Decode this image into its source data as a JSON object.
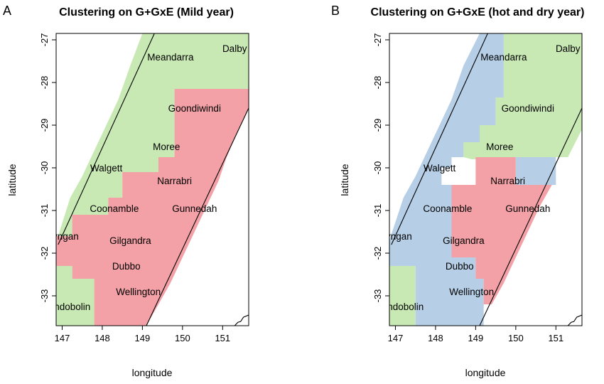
{
  "figure": {
    "panels": [
      {
        "letter": "A",
        "title": "Clustering on G+GxE (Mild year)",
        "xlabel": "longitude",
        "ylabel": "latitude"
      },
      {
        "letter": "B",
        "title": "Clustering on G+GxE (hot and dry year)",
        "xlabel": "longitude",
        "ylabel": "latitude"
      }
    ]
  },
  "chart_data": [
    {
      "type": "heatmap",
      "title": "Clustering on G+GxE (Mild year)",
      "xlabel": "longitude",
      "ylabel": "latitude",
      "xlim": [
        146.85,
        151.65
      ],
      "ylim": [
        -33.7,
        -26.85
      ],
      "xticks": [
        "147",
        "148",
        "149",
        "150",
        "151"
      ],
      "yticks": [
        "-27",
        "-28",
        "-29",
        "-30",
        "-31",
        "-32",
        "-33"
      ],
      "colors": {
        "green": "#c9e9b4",
        "red": "#f3a1a7",
        "blue": "#b6cfe7"
      },
      "region_lines": [
        [
          [
            146.9,
            -31.8
          ],
          [
            149.3,
            -26.85
          ]
        ],
        [
          [
            149.1,
            -33.7
          ],
          [
            151.65,
            -28.6
          ]
        ]
      ],
      "regions": [
        {
          "color": "green",
          "polygon": [
            [
              149.0,
              -26.85
            ],
            [
              151.65,
              -26.85
            ],
            [
              151.65,
              -28.15
            ],
            [
              149.8,
              -28.15
            ],
            [
              149.8,
              -29.75
            ],
            [
              149.4,
              -29.75
            ],
            [
              149.4,
              -30.1
            ],
            [
              148.5,
              -30.1
            ],
            [
              148.5,
              -30.7
            ],
            [
              148.15,
              -30.7
            ],
            [
              148.15,
              -31.1
            ],
            [
              147.25,
              -31.1
            ],
            [
              147.25,
              -31.6
            ],
            [
              146.9,
              -31.6
            ],
            [
              147.2,
              -30.7
            ],
            [
              147.5,
              -30.2
            ],
            [
              147.8,
              -29.6
            ],
            [
              148.1,
              -29.0
            ],
            [
              148.4,
              -28.4
            ],
            [
              148.7,
              -27.6
            ]
          ]
        },
        {
          "color": "red",
          "polygon": [
            [
              149.8,
              -28.15
            ],
            [
              151.65,
              -28.15
            ],
            [
              151.65,
              -28.6
            ],
            [
              151.35,
              -29.2
            ],
            [
              151.1,
              -29.75
            ],
            [
              150.9,
              -30.3
            ],
            [
              150.6,
              -30.9
            ],
            [
              150.3,
              -31.5
            ],
            [
              150.0,
              -32.1
            ],
            [
              149.7,
              -32.7
            ],
            [
              149.4,
              -33.2
            ],
            [
              149.1,
              -33.7
            ],
            [
              147.8,
              -33.7
            ],
            [
              147.8,
              -32.6
            ],
            [
              147.25,
              -32.6
            ],
            [
              147.25,
              -32.3
            ],
            [
              146.85,
              -32.3
            ],
            [
              146.85,
              -31.6
            ],
            [
              147.25,
              -31.6
            ],
            [
              147.25,
              -31.1
            ],
            [
              148.15,
              -31.1
            ],
            [
              148.15,
              -30.7
            ],
            [
              148.5,
              -30.7
            ],
            [
              148.5,
              -30.1
            ],
            [
              149.4,
              -30.1
            ],
            [
              149.4,
              -29.75
            ],
            [
              149.8,
              -29.75
            ]
          ]
        },
        {
          "color": "green",
          "polygon": [
            [
              146.85,
              -32.3
            ],
            [
              147.25,
              -32.3
            ],
            [
              147.25,
              -32.6
            ],
            [
              147.8,
              -32.6
            ],
            [
              147.8,
              -33.7
            ],
            [
              146.85,
              -33.7
            ]
          ]
        }
      ],
      "towns": [
        {
          "name": "Dalby",
          "lon": 151.3,
          "lat": -27.2
        },
        {
          "name": "Meandarra",
          "lon": 149.7,
          "lat": -27.4
        },
        {
          "name": "Goondiwindi",
          "lon": 150.3,
          "lat": -28.6
        },
        {
          "name": "Moree",
          "lon": 149.6,
          "lat": -29.5
        },
        {
          "name": "Walgett",
          "lon": 148.1,
          "lat": -30.0
        },
        {
          "name": "Narrabri",
          "lon": 149.8,
          "lat": -30.3
        },
        {
          "name": "Coonamble",
          "lon": 148.3,
          "lat": -30.95
        },
        {
          "name": "Gunnedah",
          "lon": 150.3,
          "lat": -30.95
        },
        {
          "name": "Nyngan",
          "lon": 147.0,
          "lat": -31.6
        },
        {
          "name": "Gilgandra",
          "lon": 148.7,
          "lat": -31.7
        },
        {
          "name": "Dubbo",
          "lon": 148.6,
          "lat": -32.3
        },
        {
          "name": "Wellington",
          "lon": 148.9,
          "lat": -32.9
        },
        {
          "name": "Condobolin",
          "lon": 147.1,
          "lat": -33.25
        }
      ]
    },
    {
      "type": "heatmap",
      "title": "Clustering on G+GxE (hot and dry year)",
      "xlabel": "longitude",
      "ylabel": "latitude",
      "xlim": [
        146.85,
        151.65
      ],
      "ylim": [
        -33.7,
        -26.85
      ],
      "xticks": [
        "147",
        "148",
        "149",
        "150",
        "151"
      ],
      "yticks": [
        "-27",
        "-28",
        "-29",
        "-30",
        "-31",
        "-32",
        "-33"
      ],
      "colors": {
        "green": "#c9e9b4",
        "red": "#f3a1a7",
        "blue": "#b6cfe7"
      },
      "region_lines": [
        [
          [
            146.9,
            -31.8
          ],
          [
            149.3,
            -26.85
          ]
        ],
        [
          [
            149.1,
            -33.7
          ],
          [
            151.65,
            -28.6
          ]
        ]
      ],
      "regions": [
        {
          "color": "blue",
          "polygon": [
            [
              149.1,
              -26.85
            ],
            [
              149.7,
              -26.85
            ],
            [
              149.7,
              -28.35
            ],
            [
              149.5,
              -28.35
            ],
            [
              149.5,
              -29.0
            ],
            [
              149.1,
              -29.0
            ],
            [
              149.1,
              -29.4
            ],
            [
              148.7,
              -29.4
            ],
            [
              148.7,
              -29.75
            ],
            [
              148.4,
              -29.75
            ],
            [
              148.4,
              -30.0
            ],
            [
              148.15,
              -30.0
            ],
            [
              148.15,
              -30.4
            ],
            [
              148.4,
              -30.4
            ],
            [
              148.4,
              -32.1
            ],
            [
              149.0,
              -32.1
            ],
            [
              149.0,
              -32.6
            ],
            [
              149.2,
              -32.6
            ],
            [
              149.2,
              -33.7
            ],
            [
              147.5,
              -33.7
            ],
            [
              147.5,
              -32.3
            ],
            [
              146.85,
              -32.3
            ],
            [
              146.85,
              -31.7
            ],
            [
              147.2,
              -30.7
            ],
            [
              147.5,
              -30.2
            ],
            [
              147.8,
              -29.6
            ],
            [
              148.1,
              -29.0
            ],
            [
              148.4,
              -28.4
            ],
            [
              148.7,
              -27.6
            ]
          ]
        },
        {
          "color": "blue",
          "polygon": [
            [
              150.0,
              -29.75
            ],
            [
              151.0,
              -29.75
            ],
            [
              151.0,
              -30.4
            ],
            [
              150.0,
              -30.4
            ]
          ]
        },
        {
          "color": "green",
          "polygon": [
            [
              149.7,
              -26.85
            ],
            [
              151.65,
              -26.85
            ],
            [
              151.65,
              -29.1
            ],
            [
              151.3,
              -29.75
            ],
            [
              150.0,
              -29.75
            ],
            [
              149.6,
              -29.75
            ],
            [
              149.6,
              -29.8
            ],
            [
              148.9,
              -29.8
            ],
            [
              148.7,
              -29.75
            ],
            [
              148.7,
              -29.4
            ],
            [
              149.1,
              -29.4
            ],
            [
              149.1,
              -29.0
            ],
            [
              149.5,
              -29.0
            ],
            [
              149.5,
              -28.35
            ],
            [
              149.7,
              -28.35
            ]
          ]
        },
        {
          "color": "red",
          "polygon": [
            [
              149.0,
              -29.75
            ],
            [
              150.0,
              -29.75
            ],
            [
              150.0,
              -30.4
            ],
            [
              150.9,
              -30.4
            ],
            [
              150.6,
              -30.9
            ],
            [
              150.3,
              -31.5
            ],
            [
              150.0,
              -32.1
            ],
            [
              149.7,
              -32.7
            ],
            [
              149.4,
              -33.2
            ],
            [
              149.2,
              -33.2
            ],
            [
              149.2,
              -32.6
            ],
            [
              149.0,
              -32.6
            ],
            [
              149.0,
              -32.1
            ],
            [
              148.4,
              -32.1
            ],
            [
              148.4,
              -30.4
            ],
            [
              149.0,
              -30.4
            ]
          ]
        },
        {
          "color": "green",
          "polygon": [
            [
              146.85,
              -32.3
            ],
            [
              147.5,
              -32.3
            ],
            [
              147.5,
              -33.7
            ],
            [
              146.85,
              -33.7
            ]
          ]
        }
      ],
      "towns": [
        {
          "name": "Dalby",
          "lon": 151.3,
          "lat": -27.2
        },
        {
          "name": "Meandarra",
          "lon": 149.7,
          "lat": -27.4
        },
        {
          "name": "Goondiwindi",
          "lon": 150.3,
          "lat": -28.6
        },
        {
          "name": "Moree",
          "lon": 149.6,
          "lat": -29.5
        },
        {
          "name": "Walgett",
          "lon": 148.1,
          "lat": -30.0
        },
        {
          "name": "Narrabri",
          "lon": 149.8,
          "lat": -30.3
        },
        {
          "name": "Coonamble",
          "lon": 148.3,
          "lat": -30.95
        },
        {
          "name": "Gunnedah",
          "lon": 150.3,
          "lat": -30.95
        },
        {
          "name": "Nyngan",
          "lon": 147.0,
          "lat": -31.6
        },
        {
          "name": "Gilgandra",
          "lon": 148.7,
          "lat": -31.7
        },
        {
          "name": "Dubbo",
          "lon": 148.6,
          "lat": -32.3
        },
        {
          "name": "Wellington",
          "lon": 148.9,
          "lat": -32.9
        },
        {
          "name": "Condobolin",
          "lon": 147.1,
          "lat": -33.25
        }
      ]
    }
  ]
}
